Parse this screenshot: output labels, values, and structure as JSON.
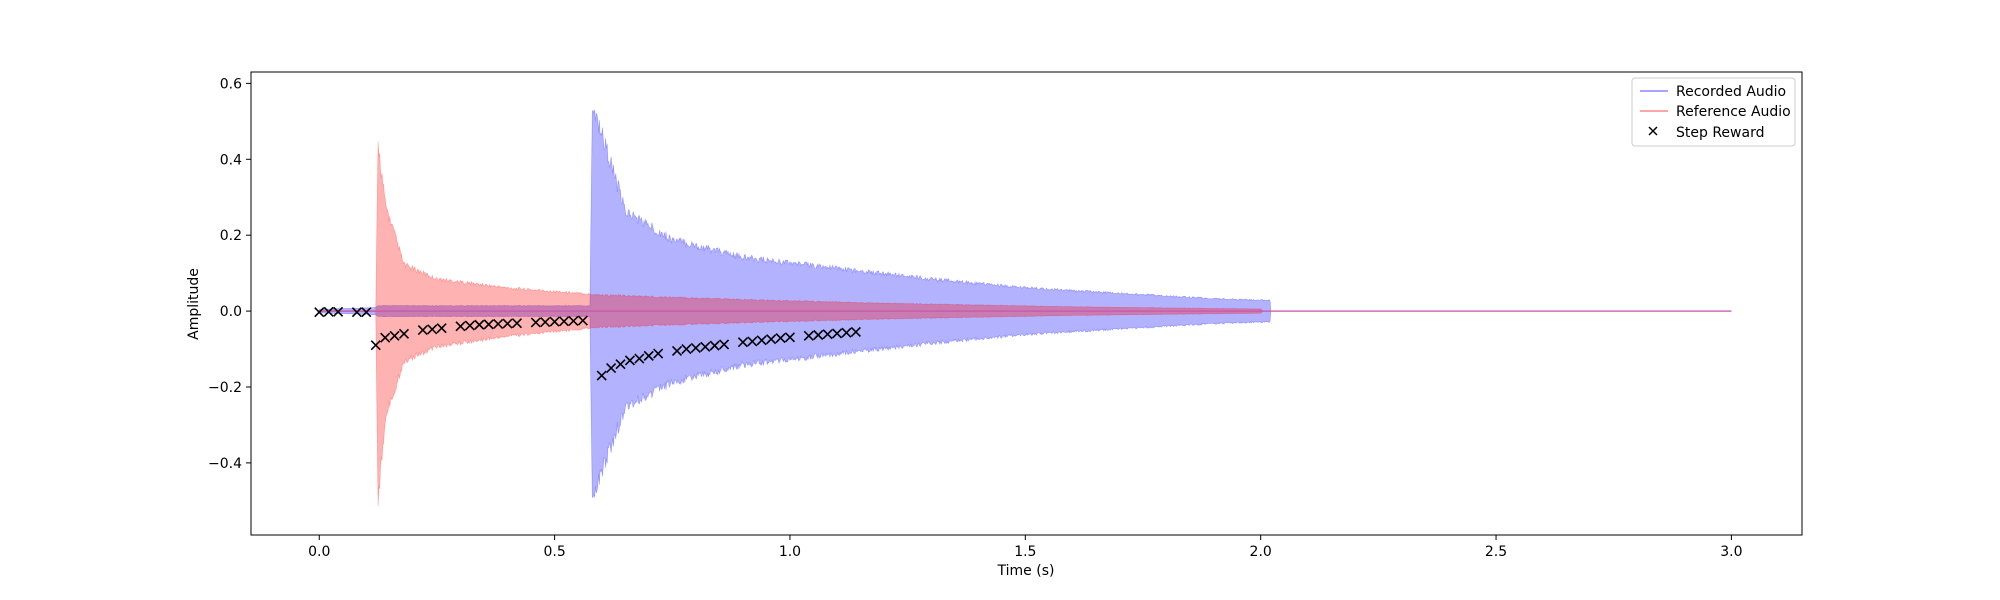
{
  "chart_data": {
    "type": "area",
    "xlabel": "Time (s)",
    "ylabel": "Amplitude",
    "xlim": [
      -0.145,
      3.15
    ],
    "ylim": [
      -0.59,
      0.63
    ],
    "xticks": [
      0.0,
      0.5,
      1.0,
      1.5,
      2.0,
      2.5,
      3.0
    ],
    "xtick_labels": [
      "0.0",
      "0.5",
      "1.0",
      "1.5",
      "2.0",
      "2.5",
      "3.0"
    ],
    "yticks": [
      -0.4,
      -0.2,
      0.0,
      0.2,
      0.4,
      0.6
    ],
    "ytick_labels": [
      "−0.4",
      "−0.2",
      "0.0",
      "0.2",
      "0.4",
      "0.6"
    ],
    "legend": {
      "position": "top-right",
      "entries": [
        "Recorded Audio",
        "Reference Audio",
        "Step Reward"
      ]
    },
    "colors": {
      "recorded": "#0000ff",
      "reference": "#ff0000",
      "reward": "#000000"
    },
    "series": [
      {
        "name": "Recorded Audio",
        "kind": "waveform",
        "envelope": [
          {
            "t": 0.0,
            "hi": 0.005,
            "lo": -0.005
          },
          {
            "t": 0.12,
            "hi": 0.01,
            "lo": -0.01
          },
          {
            "t": 0.125,
            "hi": 0.015,
            "lo": -0.015
          },
          {
            "t": 0.575,
            "hi": 0.015,
            "lo": -0.015
          },
          {
            "t": 0.58,
            "hi": 0.58,
            "lo": -0.54
          },
          {
            "t": 0.6,
            "hi": 0.5,
            "lo": -0.45
          },
          {
            "t": 0.65,
            "hi": 0.28,
            "lo": -0.27
          },
          {
            "t": 0.75,
            "hi": 0.2,
            "lo": -0.2
          },
          {
            "t": 0.9,
            "hi": 0.15,
            "lo": -0.15
          },
          {
            "t": 1.1,
            "hi": 0.12,
            "lo": -0.12
          },
          {
            "t": 1.3,
            "hi": 0.09,
            "lo": -0.09
          },
          {
            "t": 1.5,
            "hi": 0.065,
            "lo": -0.065
          },
          {
            "t": 1.7,
            "hi": 0.05,
            "lo": -0.05
          },
          {
            "t": 1.9,
            "hi": 0.035,
            "lo": -0.035
          },
          {
            "t": 2.02,
            "hi": 0.03,
            "lo": -0.03
          },
          {
            "t": 2.021,
            "hi": 0.0,
            "lo": 0.0
          },
          {
            "t": 3.0,
            "hi": 0.0,
            "lo": 0.0
          }
        ]
      },
      {
        "name": "Reference Audio",
        "kind": "waveform",
        "envelope": [
          {
            "t": 0.0,
            "hi": 0.001,
            "lo": -0.001
          },
          {
            "t": 0.12,
            "hi": 0.001,
            "lo": -0.001
          },
          {
            "t": 0.125,
            "hi": 0.47,
            "lo": -0.54
          },
          {
            "t": 0.14,
            "hi": 0.3,
            "lo": -0.3
          },
          {
            "t": 0.18,
            "hi": 0.13,
            "lo": -0.14
          },
          {
            "t": 0.25,
            "hi": 0.09,
            "lo": -0.1
          },
          {
            "t": 0.4,
            "hi": 0.065,
            "lo": -0.07
          },
          {
            "t": 0.6,
            "hi": 0.045,
            "lo": -0.045
          },
          {
            "t": 0.9,
            "hi": 0.032,
            "lo": -0.032
          },
          {
            "t": 1.2,
            "hi": 0.022,
            "lo": -0.022
          },
          {
            "t": 1.6,
            "hi": 0.012,
            "lo": -0.012
          },
          {
            "t": 2.0,
            "hi": 0.006,
            "lo": -0.006
          },
          {
            "t": 2.005,
            "hi": 0.0,
            "lo": 0.0
          },
          {
            "t": 3.0,
            "hi": 0.0,
            "lo": 0.0
          }
        ]
      },
      {
        "name": "Step Reward",
        "kind": "scatter",
        "x": [
          0.0,
          0.02,
          0.04,
          0.08,
          0.1,
          0.12,
          0.14,
          0.16,
          0.18,
          0.22,
          0.24,
          0.26,
          0.3,
          0.32,
          0.34,
          0.36,
          0.38,
          0.4,
          0.42,
          0.46,
          0.48,
          0.5,
          0.52,
          0.54,
          0.56,
          0.6,
          0.62,
          0.64,
          0.66,
          0.68,
          0.7,
          0.72,
          0.76,
          0.78,
          0.8,
          0.82,
          0.84,
          0.86,
          0.9,
          0.92,
          0.94,
          0.96,
          0.98,
          1.0,
          1.04,
          1.06,
          1.08,
          1.1,
          1.12,
          1.14
        ],
        "y": [
          -0.003,
          -0.002,
          -0.002,
          -0.003,
          -0.003,
          -0.09,
          -0.07,
          -0.065,
          -0.06,
          -0.05,
          -0.048,
          -0.045,
          -0.04,
          -0.038,
          -0.036,
          -0.035,
          -0.034,
          -0.033,
          -0.032,
          -0.03,
          -0.029,
          -0.028,
          -0.027,
          -0.026,
          -0.025,
          -0.17,
          -0.15,
          -0.14,
          -0.13,
          -0.125,
          -0.118,
          -0.112,
          -0.105,
          -0.1,
          -0.097,
          -0.094,
          -0.091,
          -0.088,
          -0.082,
          -0.08,
          -0.077,
          -0.074,
          -0.071,
          -0.069,
          -0.065,
          -0.063,
          -0.061,
          -0.059,
          -0.057,
          -0.055
        ]
      }
    ]
  }
}
